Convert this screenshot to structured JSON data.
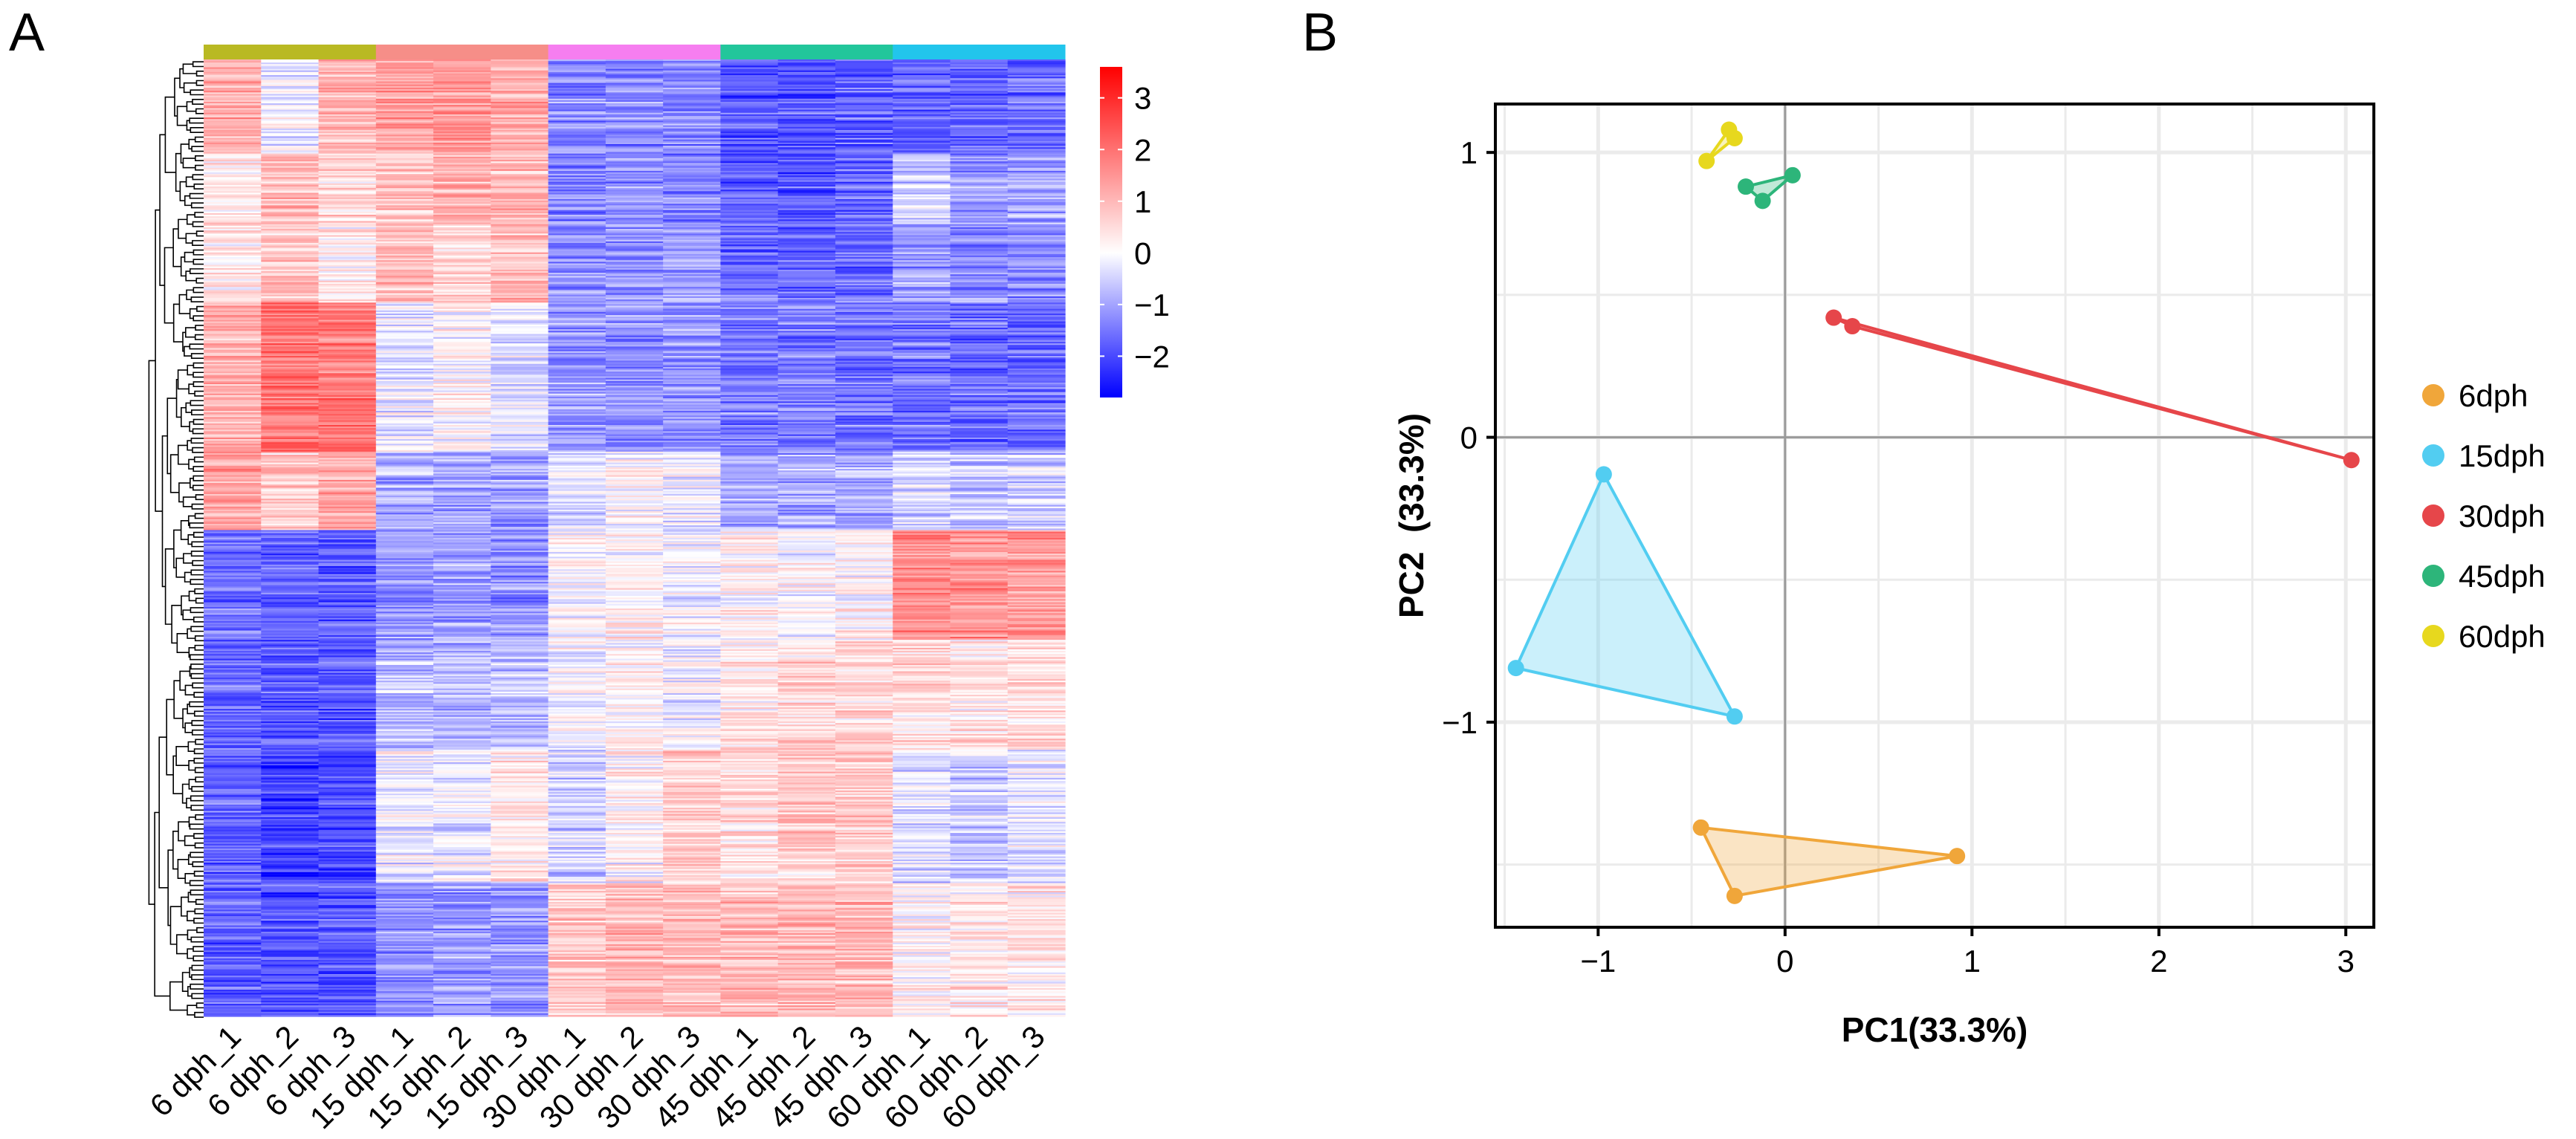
{
  "panels": {
    "a": "A",
    "b": "B"
  },
  "chart_data": [
    {
      "type": "heatmap",
      "panel": "A",
      "columns": [
        "6 dph_1",
        "6 dph_2",
        "6 dph_3",
        "15 dph_1",
        "15 dph_2",
        "15 dph_3",
        "30 dph_1",
        "30 dph_2",
        "30 dph_3",
        "45 dph_1",
        "45 dph_2",
        "45 dph_3",
        "60 dph_1",
        "60 dph_2",
        "60 dph_3"
      ],
      "groups": [
        {
          "name": "6 dph",
          "color": "#b9b923"
        },
        {
          "name": "15 dph",
          "color": "#f68e88"
        },
        {
          "name": "30 dph",
          "color": "#f67ef0"
        },
        {
          "name": "45 dph",
          "color": "#22c69b"
        },
        {
          "name": "60 dph",
          "color": "#22c5ec"
        }
      ],
      "row_blocks": [
        {
          "rows": 60,
          "means": [
            1.2,
            -0.2,
            1.0,
            1.3,
            1.4,
            1.2,
            -1.3,
            -1.3,
            -1.3,
            -1.8,
            -1.8,
            -1.7,
            -1.6,
            -1.7,
            -1.6
          ]
        },
        {
          "rows": 45,
          "means": [
            0.4,
            0.9,
            0.6,
            0.8,
            1.1,
            1.0,
            -1.4,
            -1.2,
            -1.3,
            -1.7,
            -1.8,
            -1.7,
            -0.5,
            -1.1,
            -1.0
          ]
        },
        {
          "rows": 50,
          "means": [
            0.3,
            0.8,
            0.2,
            0.9,
            0.5,
            0.9,
            -1.2,
            -1.2,
            -1.1,
            -1.6,
            -1.7,
            -1.6,
            -1.1,
            -1.3,
            -1.3
          ]
        },
        {
          "rows": 95,
          "means": [
            1.1,
            2.0,
            1.9,
            -0.2,
            0.1,
            -0.3,
            -1.1,
            -1.2,
            -1.1,
            -1.4,
            -1.4,
            -1.5,
            -1.5,
            -1.6,
            -1.6
          ]
        },
        {
          "rows": 50,
          "means": [
            1.3,
            0.7,
            1.3,
            -0.9,
            -1.0,
            -1.0,
            -0.3,
            0.1,
            -0.1,
            -0.9,
            -0.9,
            -0.9,
            -0.5,
            -0.6,
            -0.5
          ]
        },
        {
          "rows": 70,
          "means": [
            -1.6,
            -1.7,
            -1.8,
            -1.2,
            -1.1,
            -1.2,
            -0.1,
            0.1,
            -0.1,
            0.1,
            0.0,
            0.1,
            1.6,
            1.5,
            1.4
          ]
        },
        {
          "rows": 70,
          "means": [
            -1.6,
            -1.8,
            -1.8,
            -0.7,
            -0.8,
            -0.7,
            0.0,
            0.2,
            -0.1,
            0.4,
            0.6,
            0.6,
            0.5,
            0.4,
            0.5
          ]
        },
        {
          "rows": 85,
          "means": [
            -1.7,
            -2.1,
            -2.0,
            -0.2,
            -0.2,
            0.3,
            -0.5,
            0.1,
            0.6,
            0.4,
            0.7,
            0.7,
            -0.4,
            -0.6,
            -0.3
          ]
        },
        {
          "rows": 85,
          "means": [
            -1.8,
            -1.9,
            -1.9,
            -1.2,
            -1.1,
            -1.1,
            0.7,
            1.0,
            0.9,
            0.9,
            1.0,
            1.0,
            0.1,
            0.3,
            0.3
          ]
        }
      ],
      "colorbar": {
        "min": -2.8,
        "max": 3.6,
        "ticks": [
          3,
          2,
          1,
          0,
          -1,
          -2
        ],
        "tick_labels": [
          "3",
          "2",
          "1",
          "0",
          "−1",
          "−2"
        ],
        "colors": {
          "low": "#0000ff",
          "mid": "#ffffff",
          "high": "#ff0000"
        }
      }
    },
    {
      "type": "scatter",
      "panel": "B",
      "xlabel": "PC1(33.3%)",
      "ylabel": "PC2  (33.3%)",
      "xlim": [
        -1.55,
        3.15
      ],
      "ylim": [
        -1.72,
        1.17
      ],
      "xticks": [
        -1,
        0,
        1,
        2,
        3
      ],
      "xtick_labels": [
        "−1",
        "0",
        "1",
        "2",
        "3"
      ],
      "yticks": [
        -1,
        0,
        1
      ],
      "ytick_labels": [
        "−1",
        "0",
        "1"
      ],
      "grid": true,
      "legend_position": "right",
      "series": [
        {
          "name": "6dph",
          "color": "#f0a63a",
          "x": [
            -0.45,
            -0.27,
            0.92
          ],
          "y": [
            -1.37,
            -1.61,
            -1.47
          ]
        },
        {
          "name": "15dph",
          "color": "#52cdf1",
          "x": [
            -0.97,
            -1.44,
            -0.27
          ],
          "y": [
            -0.13,
            -0.81,
            -0.98
          ]
        },
        {
          "name": "30dph",
          "color": "#e6464a",
          "x": [
            0.26,
            0.36,
            3.03
          ],
          "y": [
            0.42,
            0.39,
            -0.08
          ]
        },
        {
          "name": "45dph",
          "color": "#2db57a",
          "x": [
            -0.21,
            -0.12,
            0.04
          ],
          "y": [
            0.88,
            0.83,
            0.92
          ]
        },
        {
          "name": "60dph",
          "color": "#e7d81e",
          "x": [
            -0.42,
            -0.3,
            -0.27
          ],
          "y": [
            0.97,
            1.08,
            1.05
          ]
        }
      ]
    }
  ]
}
